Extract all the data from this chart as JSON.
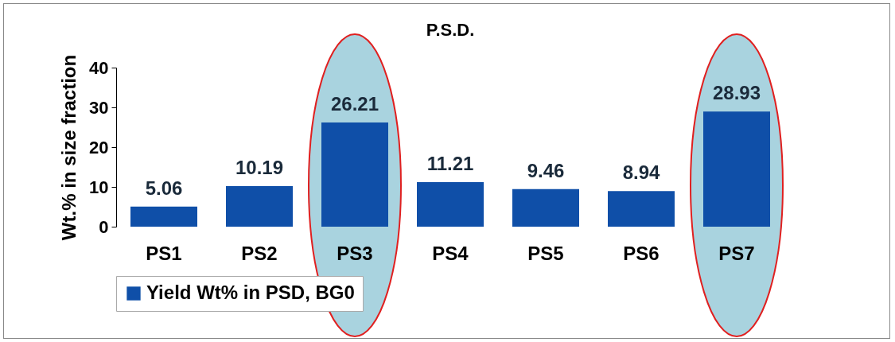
{
  "chart_data": {
    "type": "bar",
    "title": "P.S.D.",
    "ylabel": "Wt.% in size fraction",
    "categories": [
      "PS1",
      "PS2",
      "PS3",
      "PS4",
      "PS5",
      "PS6",
      "PS7"
    ],
    "series": [
      {
        "name": "Yield Wt% in PSD, BG0",
        "color": "#0f4fa8",
        "values": [
          5.06,
          10.19,
          26.21,
          11.21,
          9.46,
          8.94,
          28.93
        ]
      }
    ],
    "ylim": [
      0,
      40
    ],
    "yticks": [
      0,
      10,
      20,
      30,
      40
    ],
    "data_labels": true,
    "legend": "bottom"
  }
}
